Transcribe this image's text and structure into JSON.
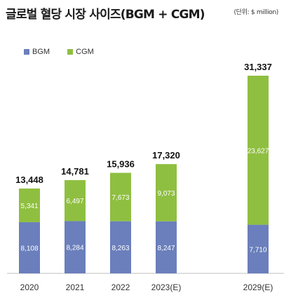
{
  "header": {
    "title": "글로벌 혈당 시장 사이즈(BGM + CGM)",
    "unit": "(단위: $ million)"
  },
  "chart_data": {
    "type": "bar",
    "stacked": true,
    "categories": [
      "2020",
      "2021",
      "2022",
      "2023(E)",
      "2029(E)"
    ],
    "series": [
      {
        "name": "BGM",
        "color": "#6a7fbc",
        "values": [
          8108,
          8284,
          8263,
          8247,
          7710
        ],
        "labels": [
          "8,108",
          "8,284",
          "8,263",
          "8,247",
          "7,710"
        ]
      },
      {
        "name": "CGM",
        "color": "#8fbf40",
        "values": [
          5341,
          6497,
          7673,
          9073,
          23627
        ],
        "labels": [
          "5,341",
          "6,497",
          "7,673",
          "9,073",
          "23,627"
        ]
      }
    ],
    "totals": [
      "13,448",
      "14,781",
      "15,936",
      "17,320",
      "31,337"
    ],
    "title": "글로벌 혈당 시장 사이즈(BGM + CGM)",
    "legend_position": "top-left",
    "grid": false
  }
}
